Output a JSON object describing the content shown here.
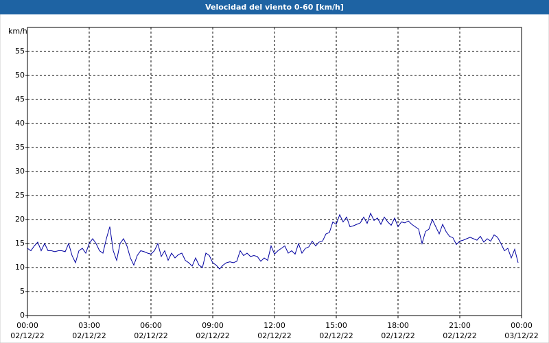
{
  "chart_data": {
    "type": "line",
    "title": "Velocidad del viento 0-60 [km/h]",
    "ylabel": "km/h",
    "xlim": [
      0,
      1440
    ],
    "ylim": [
      0,
      60
    ],
    "yticks": [
      0,
      5,
      10,
      15,
      20,
      25,
      30,
      35,
      40,
      45,
      50,
      55
    ],
    "xticks": [
      {
        "value": 0,
        "label": "00:00",
        "date": "02/12/22"
      },
      {
        "value": 180,
        "label": "03:00",
        "date": "02/12/22"
      },
      {
        "value": 360,
        "label": "06:00",
        "date": "02/12/22"
      },
      {
        "value": 540,
        "label": "09:00",
        "date": "02/12/22"
      },
      {
        "value": 720,
        "label": "12:00",
        "date": "02/12/22"
      },
      {
        "value": 900,
        "label": "15:00",
        "date": "02/12/22"
      },
      {
        "value": 1080,
        "label": "18:00",
        "date": "02/12/22"
      },
      {
        "value": 1260,
        "label": "21:00",
        "date": "02/12/22"
      },
      {
        "value": 1440,
        "label": "00:00",
        "date": "03/12/22"
      }
    ],
    "grid": true,
    "color": "#0000a0",
    "x": [
      0,
      10,
      20,
      30,
      40,
      50,
      60,
      70,
      80,
      90,
      100,
      110,
      120,
      130,
      140,
      150,
      160,
      170,
      180,
      190,
      200,
      210,
      220,
      230,
      240,
      250,
      260,
      270,
      280,
      290,
      300,
      310,
      320,
      330,
      340,
      350,
      360,
      370,
      380,
      390,
      400,
      410,
      420,
      430,
      440,
      450,
      460,
      470,
      480,
      490,
      500,
      510,
      520,
      530,
      540,
      550,
      560,
      570,
      580,
      590,
      600,
      610,
      620,
      630,
      640,
      650,
      660,
      670,
      680,
      690,
      700,
      710,
      720,
      730,
      740,
      750,
      760,
      770,
      780,
      790,
      800,
      810,
      820,
      830,
      840,
      850,
      860,
      870,
      880,
      890,
      900,
      910,
      920,
      930,
      940,
      950,
      960,
      970,
      980,
      990,
      1000,
      1010,
      1020,
      1030,
      1040,
      1050,
      1060,
      1070,
      1080,
      1090,
      1100,
      1110,
      1120,
      1130,
      1140,
      1150,
      1160,
      1170,
      1180,
      1190,
      1200,
      1210,
      1220,
      1230,
      1240,
      1250,
      1260,
      1270,
      1280,
      1290,
      1300,
      1310,
      1320,
      1330,
      1340,
      1350,
      1360,
      1370,
      1380,
      1390,
      1400,
      1410,
      1420,
      1430
    ],
    "values": [
      14,
      13.5,
      14.5,
      15.3,
      13.5,
      15,
      13.5,
      13.5,
      13.3,
      13.5,
      13.5,
      13.3,
      15,
      12.5,
      11,
      13.5,
      14,
      13,
      15,
      16,
      15,
      13.5,
      13,
      16,
      18.5,
      13.5,
      11.5,
      15,
      16,
      14.5,
      12,
      10.5,
      12.5,
      13.5,
      13.3,
      13,
      12.8,
      13.5,
      15,
      12.3,
      13.5,
      11.5,
      13,
      12,
      12.7,
      13,
      11.5,
      11,
      10.3,
      12,
      10.5,
      10,
      13,
      12.5,
      11,
      10.5,
      9.7,
      10.5,
      11,
      11.2,
      11,
      11.3,
      13.5,
      12.5,
      13,
      12.3,
      12.5,
      12.3,
      11.3,
      12,
      11.5,
      14.5,
      12.8,
      13.5,
      14,
      14.5,
      13,
      13.5,
      12.8,
      15,
      13,
      14,
      14.3,
      15.5,
      14.5,
      15.3,
      15.5,
      17,
      17.3,
      19.5,
      19,
      21,
      19.5,
      20.5,
      18.5,
      18.7,
      19,
      19.3,
      20.5,
      19.2,
      21.3,
      19.8,
      20.3,
      19,
      20.5,
      19.5,
      18.8,
      20.3,
      18.5,
      19.5,
      19.3,
      19.7,
      19,
      18.5,
      18,
      15,
      17.5,
      18,
      20,
      18.5,
      17,
      19,
      17.5,
      16.5,
      16.2,
      14.8,
      15.5,
      15.7,
      16,
      16.3,
      16,
      15.7,
      16.5,
      15.3,
      16,
      15.5,
      16.8,
      16.3,
      15,
      13.5,
      14,
      12,
      13.8,
      11
    ]
  }
}
